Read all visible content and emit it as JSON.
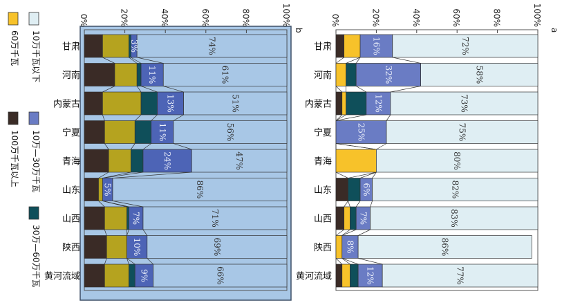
{
  "chart_data": [
    {
      "type": "bar",
      "stacked": true,
      "normalized": true,
      "panel_label": "a",
      "categories": [
        "甘肃",
        "河南",
        "内蒙古",
        "宁夏",
        "青海",
        "山东",
        "山西",
        "陕西",
        "黄河流域"
      ],
      "series": [
        {
          "name": "100万千瓦以上",
          "color": "#3a2b26",
          "values": [
            4,
            0,
            3,
            0,
            0,
            6,
            4,
            0,
            3
          ]
        },
        {
          "name": "60万千瓦",
          "color": "#f7c22a",
          "values": [
            8,
            5,
            2,
            0,
            20,
            0,
            3,
            3,
            4
          ]
        },
        {
          "name": "30万—60万千瓦",
          "color": "#0f4f5a",
          "values": [
            0,
            5,
            10,
            0,
            0,
            6,
            3,
            0,
            4
          ]
        },
        {
          "name": "10万—30万千瓦",
          "color": "#6a7cc4",
          "values": [
            16,
            32,
            12,
            25,
            0,
            6,
            7,
            8,
            12
          ]
        },
        {
          "name": "10万千瓦以下",
          "color": "#dfeef3",
          "values": [
            72,
            58,
            73,
            75,
            80,
            82,
            83,
            86,
            77
          ]
        }
      ],
      "data_labels": {
        "10万—30万千瓦": [
          "16%",
          "32%",
          "12%",
          "25%",
          "",
          "6%",
          "7%",
          "8%",
          "12%"
        ],
        "10万千瓦以下": [
          "72%",
          "58%",
          "73%",
          "75%",
          "80%",
          "82%",
          "83%",
          "86%",
          "77%"
        ]
      },
      "value_ticks": [
        "0%",
        "20%",
        "40%",
        "60%",
        "80%",
        "100%"
      ],
      "ylim": [
        0,
        100
      ]
    },
    {
      "type": "bar",
      "stacked": true,
      "normalized": true,
      "panel_label": "b",
      "categories": [
        "甘肃",
        "河南",
        "内蒙古",
        "宁夏",
        "青海",
        "山东",
        "山西",
        "陕西",
        "黄河流域"
      ],
      "series": [
        {
          "name": "100万千瓦以上",
          "color": "#3a2b26",
          "values": [
            9,
            15,
            9,
            10,
            12,
            7,
            10,
            11,
            10
          ]
        },
        {
          "name": "60万千瓦",
          "color": "#b5a31f",
          "values": [
            13,
            11,
            19,
            15,
            11,
            2,
            11,
            10,
            12
          ]
        },
        {
          "name": "30万—60万千瓦",
          "color": "#0f4f5a",
          "values": [
            1,
            2,
            8,
            8,
            6,
            0,
            1,
            0,
            3
          ]
        },
        {
          "name": "10万—30万千瓦",
          "color": "#4d64b6",
          "values": [
            3,
            11,
            13,
            11,
            24,
            5,
            7,
            10,
            9
          ]
        },
        {
          "name": "10万千瓦以下",
          "color": "#a8c7e6",
          "values": [
            74,
            61,
            51,
            56,
            47,
            86,
            71,
            69,
            66
          ]
        }
      ],
      "data_labels": {
        "10万—30万千瓦": [
          "3%",
          "11%",
          "13%",
          "11%",
          "24%",
          "5%",
          "7%",
          "10%",
          "9%"
        ],
        "10万千瓦以下": [
          "74%",
          "61%",
          "51%",
          "56%",
          "47%",
          "86%",
          "71%",
          "69%",
          "66%"
        ]
      },
      "value_ticks": [
        "0%",
        "20%",
        "40%",
        "60%",
        "80%",
        "100%"
      ],
      "ylim": [
        0,
        100
      ]
    }
  ],
  "legend": [
    {
      "label": "10万千瓦以下",
      "color": "#dfeef3"
    },
    {
      "label": "60万千瓦",
      "color": "#f7c22a"
    },
    {
      "label": "10万—30万千瓦",
      "color": "#6a7cc4"
    },
    {
      "label": "100万千瓦以上",
      "color": "#3a2b26"
    },
    {
      "label": "30万—60万千瓦",
      "color": "#0f4f5a"
    }
  ]
}
